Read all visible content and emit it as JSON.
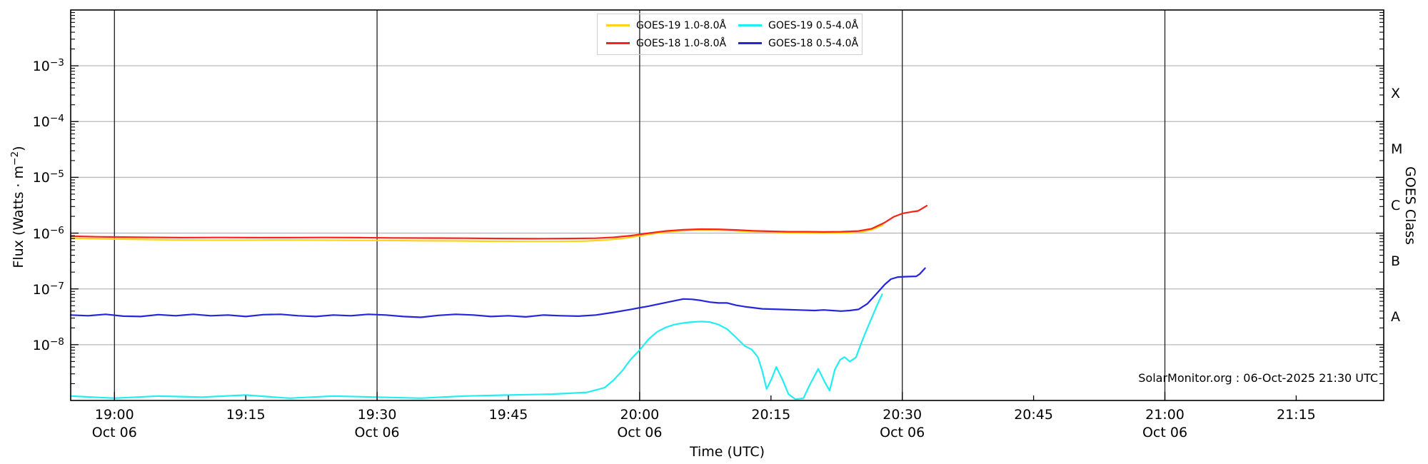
{
  "annotation": "SolarMonitor.org : 06-Oct-2025 21:30 UTC",
  "legend": {
    "items": [
      {
        "label": "GOES-19 1.0-8.0Å",
        "color": "#ffd21e"
      },
      {
        "label": "GOES-19 0.5-4.0Å",
        "color": "#22eef2"
      },
      {
        "label": "GOES-18 1.0-8.0Å",
        "color": "#f8231d"
      },
      {
        "label": "GOES-18 0.5-4.0Å",
        "color": "#2525dc"
      }
    ]
  },
  "chart_data": {
    "type": "line",
    "x_axis": {
      "label": "Time (UTC)",
      "domain_minutes": [
        1135,
        1285
      ],
      "ticks": [
        {
          "minute": 1140,
          "label": "19:00",
          "sub": "Oct 06",
          "major": true
        },
        {
          "minute": 1155,
          "label": "19:15",
          "sub": "",
          "major": false
        },
        {
          "minute": 1170,
          "label": "19:30",
          "sub": "Oct 06",
          "major": true
        },
        {
          "minute": 1185,
          "label": "19:45",
          "sub": "",
          "major": false
        },
        {
          "minute": 1200,
          "label": "20:00",
          "sub": "Oct 06",
          "major": true
        },
        {
          "minute": 1215,
          "label": "20:15",
          "sub": "",
          "major": false
        },
        {
          "minute": 1230,
          "label": "20:30",
          "sub": "Oct 06",
          "major": true
        },
        {
          "minute": 1245,
          "label": "20:45",
          "sub": "",
          "major": false
        },
        {
          "minute": 1260,
          "label": "21:00",
          "sub": "Oct 06",
          "major": true
        },
        {
          "minute": 1275,
          "label": "21:15",
          "sub": "",
          "major": false
        }
      ],
      "gridline_minutes": [
        1140,
        1170,
        1200,
        1230,
        1260
      ]
    },
    "y_axis_left": {
      "label_parts": {
        "pre": "Flux (Watts · m",
        "sup": "−2",
        "post": ")"
      },
      "log_domain": [
        -9,
        -2
      ],
      "labeled_exponents": [
        -3,
        -4,
        -5,
        -6,
        -7,
        -8
      ],
      "gridline_exponents": [
        -3,
        -4,
        -5,
        -6,
        -7,
        -8
      ]
    },
    "y_axis_right": {
      "label": "GOES Class",
      "classes": [
        {
          "letter": "A",
          "log_center": -7.5
        },
        {
          "letter": "B",
          "log_center": -6.5
        },
        {
          "letter": "C",
          "log_center": -5.5
        },
        {
          "letter": "M",
          "log_center": -4.5
        },
        {
          "letter": "X",
          "log_center": -3.5
        }
      ]
    },
    "style": {
      "h_grid_color": "#b9b9b9",
      "v_grid_color": "#1f1f1f",
      "spine_color": "#000000",
      "line_width": 2.2
    },
    "series": [
      {
        "name": "GOES-19 1.0-8.0Å",
        "color": "#ffd21e",
        "points": [
          [
            1135,
            8.1e-07
          ],
          [
            1139,
            7.9e-07
          ],
          [
            1143,
            7.7e-07
          ],
          [
            1147,
            7.55e-07
          ],
          [
            1151,
            7.5e-07
          ],
          [
            1155,
            7.5e-07
          ],
          [
            1159,
            7.55e-07
          ],
          [
            1163,
            7.5e-07
          ],
          [
            1167,
            7.45e-07
          ],
          [
            1171,
            7.4e-07
          ],
          [
            1175,
            7.3e-07
          ],
          [
            1179,
            7.25e-07
          ],
          [
            1183,
            7.15e-07
          ],
          [
            1187,
            7.1e-07
          ],
          [
            1191,
            7.1e-07
          ],
          [
            1194,
            7.2e-07
          ],
          [
            1196,
            7.5e-07
          ],
          [
            1198,
            8e-07
          ],
          [
            1200,
            8.9e-07
          ],
          [
            1202,
            1e-06
          ],
          [
            1204,
            1.08e-06
          ],
          [
            1206,
            1.13e-06
          ],
          [
            1208,
            1.14e-06
          ],
          [
            1210,
            1.12e-06
          ],
          [
            1212,
            1.08e-06
          ],
          [
            1214,
            1.05e-06
          ],
          [
            1216,
            1.03e-06
          ],
          [
            1218,
            1.01e-06
          ],
          [
            1220,
            1e-06
          ],
          [
            1222,
            1e-06
          ],
          [
            1224,
            1.02e-06
          ],
          [
            1225.5,
            1.06e-06
          ],
          [
            1226.5,
            1.15e-06
          ],
          [
            1227.8,
            1.4e-06
          ]
        ]
      },
      {
        "name": "GOES-18 1.0-8.0Å",
        "color": "#f8231d",
        "points": [
          [
            1135,
            8.8e-07
          ],
          [
            1138,
            8.6e-07
          ],
          [
            1141,
            8.5e-07
          ],
          [
            1144,
            8.4e-07
          ],
          [
            1148,
            8.3e-07
          ],
          [
            1152,
            8.35e-07
          ],
          [
            1156,
            8.3e-07
          ],
          [
            1160,
            8.3e-07
          ],
          [
            1164,
            8.35e-07
          ],
          [
            1168,
            8.3e-07
          ],
          [
            1172,
            8.2e-07
          ],
          [
            1176,
            8.15e-07
          ],
          [
            1180,
            8.1e-07
          ],
          [
            1184,
            8e-07
          ],
          [
            1188,
            7.95e-07
          ],
          [
            1192,
            8e-07
          ],
          [
            1195,
            8.1e-07
          ],
          [
            1197,
            8.4e-07
          ],
          [
            1199,
            9e-07
          ],
          [
            1201,
            1e-06
          ],
          [
            1203,
            1.09e-06
          ],
          [
            1205,
            1.15e-06
          ],
          [
            1207,
            1.18e-06
          ],
          [
            1209,
            1.17e-06
          ],
          [
            1211,
            1.14e-06
          ],
          [
            1213,
            1.1e-06
          ],
          [
            1215,
            1.08e-06
          ],
          [
            1217,
            1.06e-06
          ],
          [
            1219,
            1.06e-06
          ],
          [
            1221,
            1.05e-06
          ],
          [
            1223,
            1.06e-06
          ],
          [
            1225,
            1.09e-06
          ],
          [
            1226.5,
            1.2e-06
          ],
          [
            1228,
            1.55e-06
          ],
          [
            1229,
            1.95e-06
          ],
          [
            1230,
            2.25e-06
          ],
          [
            1231,
            2.4e-06
          ],
          [
            1231.8,
            2.5e-06
          ],
          [
            1232.8,
            3.1e-06
          ]
        ]
      },
      {
        "name": "GOES-19 0.5-4.0Å",
        "color": "#22eef2",
        "points": [
          [
            1135,
            1.2e-09
          ],
          [
            1140,
            1.1e-09
          ],
          [
            1145,
            1.2e-09
          ],
          [
            1150,
            1.15e-09
          ],
          [
            1155,
            1.25e-09
          ],
          [
            1160,
            1.1e-09
          ],
          [
            1165,
            1.2e-09
          ],
          [
            1170,
            1.15e-09
          ],
          [
            1175,
            1.1e-09
          ],
          [
            1180,
            1.2e-09
          ],
          [
            1185,
            1.25e-09
          ],
          [
            1190,
            1.3e-09
          ],
          [
            1194,
            1.4e-09
          ],
          [
            1196,
            1.7e-09
          ],
          [
            1197,
            2.3e-09
          ],
          [
            1198,
            3.4e-09
          ],
          [
            1199,
            5.5e-09
          ],
          [
            1200,
            8e-09
          ],
          [
            1201,
            1.25e-08
          ],
          [
            1202,
            1.7e-08
          ],
          [
            1203,
            2.05e-08
          ],
          [
            1204,
            2.3e-08
          ],
          [
            1205,
            2.45e-08
          ],
          [
            1206,
            2.55e-08
          ],
          [
            1207,
            2.6e-08
          ],
          [
            1208,
            2.55e-08
          ],
          [
            1209,
            2.3e-08
          ],
          [
            1210,
            1.9e-08
          ],
          [
            1211,
            1.35e-08
          ],
          [
            1212,
            9.5e-09
          ],
          [
            1212.8,
            8.2e-09
          ],
          [
            1213.5,
            6e-09
          ],
          [
            1214,
            3.4e-09
          ],
          [
            1214.5,
            1.6e-09
          ],
          [
            1215.1,
            2.5e-09
          ],
          [
            1215.6,
            4e-09
          ],
          [
            1216.3,
            2.4e-09
          ],
          [
            1217,
            1.3e-09
          ],
          [
            1217.8,
            1.05e-09
          ],
          [
            1218.7,
            1.1e-09
          ],
          [
            1219.5,
            2e-09
          ],
          [
            1220.4,
            3.7e-09
          ],
          [
            1221.1,
            2.2e-09
          ],
          [
            1221.7,
            1.5e-09
          ],
          [
            1222.3,
            3.6e-09
          ],
          [
            1222.9,
            5.4e-09
          ],
          [
            1223.4,
            6e-09
          ],
          [
            1224,
            5e-09
          ],
          [
            1224.7,
            5.9e-09
          ],
          [
            1225.3,
            1.05e-08
          ],
          [
            1225.9,
            1.8e-08
          ],
          [
            1226.5,
            3e-08
          ],
          [
            1227.1,
            5e-08
          ],
          [
            1227.7,
            8e-08
          ]
        ]
      },
      {
        "name": "GOES-18 0.5-4.0Å",
        "color": "#2525dc",
        "points": [
          [
            1135,
            3.4e-08
          ],
          [
            1137,
            3.3e-08
          ],
          [
            1139,
            3.5e-08
          ],
          [
            1141,
            3.25e-08
          ],
          [
            1143,
            3.2e-08
          ],
          [
            1145,
            3.45e-08
          ],
          [
            1147,
            3.3e-08
          ],
          [
            1149,
            3.5e-08
          ],
          [
            1151,
            3.3e-08
          ],
          [
            1153,
            3.4e-08
          ],
          [
            1155,
            3.2e-08
          ],
          [
            1157,
            3.45e-08
          ],
          [
            1159,
            3.5e-08
          ],
          [
            1161,
            3.3e-08
          ],
          [
            1163,
            3.2e-08
          ],
          [
            1165,
            3.4e-08
          ],
          [
            1167,
            3.3e-08
          ],
          [
            1169,
            3.5e-08
          ],
          [
            1171,
            3.4e-08
          ],
          [
            1173,
            3.2e-08
          ],
          [
            1175,
            3.1e-08
          ],
          [
            1177,
            3.35e-08
          ],
          [
            1179,
            3.5e-08
          ],
          [
            1181,
            3.4e-08
          ],
          [
            1183,
            3.2e-08
          ],
          [
            1185,
            3.3e-08
          ],
          [
            1187,
            3.15e-08
          ],
          [
            1189,
            3.4e-08
          ],
          [
            1191,
            3.3e-08
          ],
          [
            1193,
            3.25e-08
          ],
          [
            1195,
            3.4e-08
          ],
          [
            1197,
            3.8e-08
          ],
          [
            1199,
            4.3e-08
          ],
          [
            1201,
            4.9e-08
          ],
          [
            1203,
            5.7e-08
          ],
          [
            1205,
            6.6e-08
          ],
          [
            1206,
            6.5e-08
          ],
          [
            1207,
            6.2e-08
          ],
          [
            1208,
            5.8e-08
          ],
          [
            1209,
            5.6e-08
          ],
          [
            1210,
            5.6e-08
          ],
          [
            1211,
            5.1e-08
          ],
          [
            1212,
            4.8e-08
          ],
          [
            1213,
            4.6e-08
          ],
          [
            1214,
            4.4e-08
          ],
          [
            1216,
            4.3e-08
          ],
          [
            1218,
            4.2e-08
          ],
          [
            1220,
            4.1e-08
          ],
          [
            1221,
            4.2e-08
          ],
          [
            1222,
            4.1e-08
          ],
          [
            1223,
            4e-08
          ],
          [
            1224,
            4.1e-08
          ],
          [
            1225,
            4.3e-08
          ],
          [
            1226,
            5.4e-08
          ],
          [
            1227,
            8e-08
          ],
          [
            1228,
            1.2e-07
          ],
          [
            1228.7,
            1.5e-07
          ],
          [
            1229.5,
            1.63e-07
          ],
          [
            1230.5,
            1.66e-07
          ],
          [
            1231.6,
            1.68e-07
          ],
          [
            1232,
            1.85e-07
          ],
          [
            1232.6,
            2.35e-07
          ]
        ]
      }
    ]
  }
}
